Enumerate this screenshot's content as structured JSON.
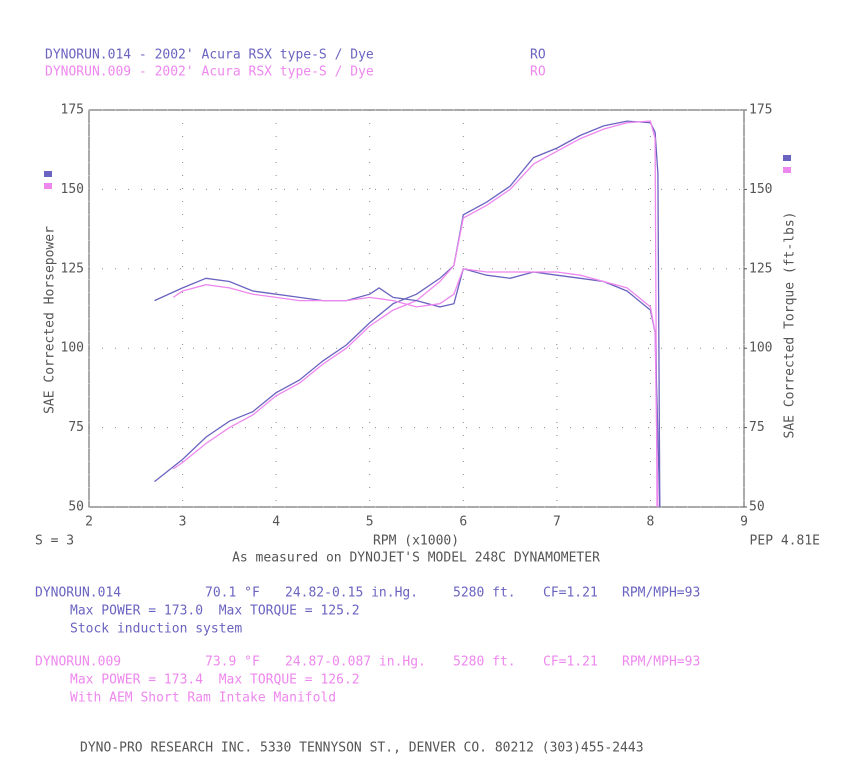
{
  "header": [
    {
      "title": "DYNORUN.014 - 2002' Acura RSX type-S / Dye",
      "code": "RO",
      "color": "#6a64c0"
    },
    {
      "title": "DYNORUN.009 - 2002' Acura RSX type-S / Dye",
      "code": "RO",
      "color": "#ee88ee"
    }
  ],
  "chart_data": {
    "type": "line",
    "xlabel": "RPM (x1000)",
    "ylabel": "SAE Corrected Horsepower",
    "y2label": "SAE Corrected Torque (ft-lbs)",
    "left_note": "S = 3",
    "right_note": "PEP 4.81E",
    "subtitle": "As measured on DYNOJET'S MODEL 248C DYNAMOMETER",
    "xlim": [
      2,
      9
    ],
    "xticks": [
      2,
      3,
      4,
      5,
      6,
      7,
      8,
      9
    ],
    "ylim": [
      50,
      175
    ],
    "yticks": [
      50,
      75,
      100,
      125,
      150,
      175
    ],
    "y2lim": [
      50,
      175
    ],
    "y2ticks": [
      50,
      75,
      100,
      125,
      150,
      175
    ],
    "grid": true,
    "series": [
      {
        "color": "#6a64c0",
        "x": [
          2.7,
          3.0,
          3.25,
          3.5,
          3.75,
          4.0,
          4.25,
          4.5,
          4.75,
          5.0,
          5.25,
          5.5,
          5.75,
          5.9,
          6.0,
          6.25,
          6.5,
          6.75,
          7.0,
          7.25,
          7.5,
          7.75,
          8.0,
          8.05,
          8.08,
          8.1
        ],
        "values": [
          58,
          65,
          72,
          77,
          80,
          86,
          90,
          96,
          101,
          108,
          114,
          117,
          122,
          126,
          142,
          146,
          151,
          160,
          163,
          167,
          170,
          171.5,
          171,
          168,
          155,
          50
        ]
      },
      {
        "color": "#ee88ee",
        "x": [
          2.9,
          3.0,
          3.25,
          3.5,
          3.75,
          4.0,
          4.25,
          4.5,
          4.75,
          5.0,
          5.25,
          5.5,
          5.75,
          5.9,
          6.0,
          6.25,
          6.5,
          6.75,
          7.0,
          7.25,
          7.5,
          7.75,
          8.0,
          8.05,
          8.07
        ],
        "values": [
          62,
          64,
          70,
          75,
          79,
          85,
          89,
          95,
          100,
          107,
          112,
          115,
          121,
          126,
          141,
          145,
          150,
          158,
          162,
          166,
          169,
          171,
          171.5,
          166,
          50
        ]
      },
      {
        "color": "#6a64c0",
        "axis": "y2",
        "x": [
          2.7,
          3.0,
          3.25,
          3.5,
          3.75,
          4.0,
          4.25,
          4.5,
          4.75,
          5.0,
          5.1,
          5.25,
          5.5,
          5.75,
          5.9,
          6.0,
          6.25,
          6.5,
          6.75,
          7.0,
          7.25,
          7.5,
          7.75,
          8.0,
          8.05,
          8.1
        ],
        "values": [
          115,
          119,
          122,
          121,
          118,
          117,
          116,
          115,
          115,
          117,
          119,
          116,
          115,
          113,
          114,
          125,
          123,
          122,
          124,
          123,
          122,
          121,
          118,
          112,
          105,
          50
        ]
      },
      {
        "color": "#ee88ee",
        "axis": "y2",
        "x": [
          2.9,
          3.0,
          3.25,
          3.5,
          3.75,
          4.0,
          4.25,
          4.5,
          4.75,
          5.0,
          5.25,
          5.5,
          5.75,
          5.9,
          6.0,
          6.25,
          6.5,
          6.75,
          7.0,
          7.25,
          7.5,
          7.75,
          8.0,
          8.05,
          8.08
        ],
        "values": [
          116,
          118,
          120,
          119,
          117,
          116,
          115,
          115,
          115,
          116,
          115,
          113,
          114,
          117,
          125,
          124,
          124,
          124,
          124,
          123,
          121,
          119,
          113,
          105,
          50
        ]
      }
    ]
  },
  "runs": [
    {
      "color": "#6a64c0",
      "run": "DYNORUN.014",
      "temp": "70.1 °F",
      "baro": "24.82-0.15 in.Hg.",
      "alt": "5280 ft.",
      "cf": "CF=1.21",
      "ratio": "RPM/MPH=93",
      "max": "Max POWER = 173.0  Max TORQUE = 125.2",
      "note": "Stock induction system"
    },
    {
      "color": "#ee88ee",
      "run": "DYNORUN.009",
      "temp": "73.9 °F",
      "baro": "24.87-0.087 in.Hg.",
      "alt": "5280 ft.",
      "cf": "CF=1.21",
      "ratio": "RPM/MPH=93",
      "max": "Max POWER = 173.4  Max TORQUE = 126.2",
      "note": "With AEM Short Ram Intake Manifold"
    }
  ],
  "footer": "DYNO-PRO RESEARCH INC. 5330 TENNYSON ST., DENVER CO. 80212 (303)455-2443"
}
